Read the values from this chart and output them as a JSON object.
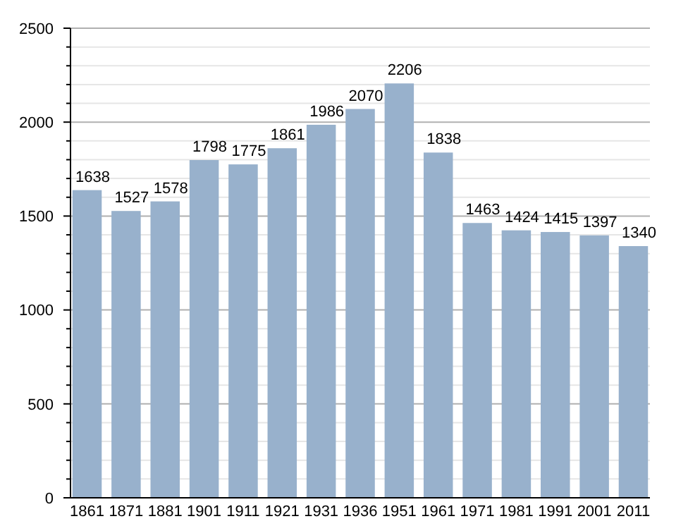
{
  "chart_data": {
    "type": "bar",
    "categories": [
      "1861",
      "1871",
      "1881",
      "1901",
      "1911",
      "1921",
      "1931",
      "1936",
      "1951",
      "1961",
      "1971",
      "1981",
      "1991",
      "2001",
      "2011"
    ],
    "values": [
      1638,
      1527,
      1578,
      1798,
      1775,
      1861,
      1986,
      2070,
      2206,
      1838,
      1463,
      1424,
      1415,
      1397,
      1340
    ],
    "color": "#98b1cc",
    "ylim": [
      0,
      2500
    ],
    "yticks": [
      0,
      {
        "value": 100,
        "label": null
      },
      {
        "value": 200,
        "label": null
      },
      {
        "value": 300,
        "label": null
      },
      {
        "value": 400,
        "label": null
      },
      500,
      {
        "value": 600,
        "label": null
      },
      {
        "value": 700,
        "label": null
      },
      {
        "value": 800,
        "label": null
      },
      {
        "value": 900,
        "label": null
      },
      1000,
      {
        "value": 1100,
        "label": null
      },
      {
        "value": 1200,
        "label": null
      },
      {
        "value": 1300,
        "label": null
      },
      {
        "value": 1400,
        "label": null
      },
      1500,
      {
        "value": 1600,
        "label": null
      },
      {
        "value": 1700,
        "label": null
      },
      {
        "value": 1800,
        "label": null
      },
      {
        "value": 1900,
        "label": null
      },
      2000,
      {
        "value": 2100,
        "label": null
      },
      {
        "value": 2200,
        "label": null
      },
      {
        "value": 2300,
        "label": null
      },
      {
        "value": 2400,
        "label": null
      },
      2500
    ],
    "grid": "y",
    "data_labels": true
  }
}
